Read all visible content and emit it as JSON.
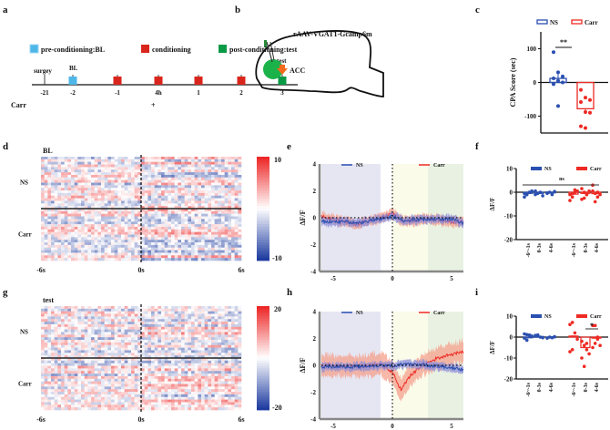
{
  "panel_labels": {
    "a": "a",
    "b": "b",
    "c": "c",
    "d": "d",
    "e": "e",
    "f": "f",
    "g": "g",
    "h": "h",
    "i": "i"
  },
  "timeline": {
    "legend": [
      {
        "label": "pre-conditioning:BL",
        "color": "#4fb6e8"
      },
      {
        "label": "conditioning",
        "color": "#d9261c"
      },
      {
        "label": "post-conditioning:test",
        "color": "#0a9a45"
      }
    ],
    "days": [
      {
        "label": "-21",
        "marker": "none"
      },
      {
        "label": "-2",
        "marker": "pre"
      },
      {
        "label": "-1",
        "marker": "cond"
      },
      {
        "label": "4h",
        "marker": "cond"
      },
      {
        "label": "1",
        "marker": "cond"
      },
      {
        "label": "2",
        "marker": "cond"
      },
      {
        "label": "3",
        "marker": "post"
      }
    ],
    "surgery_label": "surgey",
    "bl_label": "BL",
    "test_label": "test",
    "row_label": "Carr",
    "carr_mark": "+",
    "arrow_color": "#f26a1b"
  },
  "brain": {
    "virus_label": "rAAV-VGAT1-Gcamp6m",
    "region_label": "ACC",
    "region_color": "#1bb24a"
  },
  "colors": {
    "ns": "#2a4fb0",
    "carr": "#ee2a24",
    "ns_band": "#8c8cd8",
    "carr_band": "#f4a08c"
  },
  "chart_data": [
    {
      "id": "c",
      "type": "scatter-bar",
      "title": "",
      "xlabel": "",
      "ylabel": "CPA Score (sec)",
      "ylim": [
        -150,
        150
      ],
      "yticks": [
        100,
        0,
        -100
      ],
      "legend": [
        "NS",
        "Carr"
      ],
      "legend_placement": "top",
      "series": [
        {
          "name": "NS",
          "mean": 12,
          "sem": 20,
          "values": [
            90,
            30,
            18,
            12,
            5,
            0,
            -5,
            -70
          ]
        },
        {
          "name": "Carr",
          "mean": -78,
          "sem": 15,
          "values": [
            -22,
            -45,
            -52,
            -58,
            -88,
            -90,
            -130,
            -135
          ]
        }
      ],
      "significance": "**"
    },
    {
      "id": "d",
      "type": "heatmap",
      "title": "BL",
      "groups": [
        "NS",
        "Carr"
      ],
      "rows_per_group": [
        20,
        20
      ],
      "xlabels": [
        "-6s",
        "0s",
        "6s"
      ],
      "xlim": [
        -6,
        6
      ],
      "colorbar": {
        "max": 10,
        "min": -10,
        "max_label": "10",
        "min_label": "-10"
      }
    },
    {
      "id": "e",
      "type": "line",
      "ylabel": "ΔF/F",
      "xlim": [
        -6,
        6
      ],
      "ylim": [
        -4,
        4
      ],
      "yticks": [
        4,
        2,
        0,
        -2,
        -4
      ],
      "xticks": [
        -5,
        0,
        5
      ],
      "shaded": [
        {
          "from": -6,
          "to": -1,
          "color": "#e6e6f3"
        },
        {
          "from": 0,
          "to": 3,
          "color": "#fbfbea"
        },
        {
          "from": 3,
          "to": 6,
          "color": "#e9f2e2"
        }
      ],
      "legend": [
        "NS",
        "Carr"
      ],
      "series": [
        {
          "name": "NS",
          "points": [
            [
              -6,
              -0.3
            ],
            [
              -4,
              -0.3
            ],
            [
              -3,
              -0.4
            ],
            [
              -1,
              -0.1
            ],
            [
              0,
              0.1
            ],
            [
              1,
              -0.2
            ],
            [
              3,
              -0.1
            ],
            [
              5,
              -0.1
            ],
            [
              6,
              -0.4
            ]
          ],
          "sem": 0.3
        },
        {
          "name": "Carr",
          "points": [
            [
              -6,
              0.1
            ],
            [
              -4,
              -0.3
            ],
            [
              -3,
              -0.5
            ],
            [
              -1,
              0
            ],
            [
              0,
              0.3
            ],
            [
              1,
              -0.3
            ],
            [
              3,
              -0.1
            ],
            [
              5,
              -0.3
            ],
            [
              6,
              -0.3
            ]
          ],
          "sem": 0.35
        }
      ]
    },
    {
      "id": "f",
      "type": "dot-bar",
      "ylabel": "ΔF/F",
      "ylim": [
        -20,
        10
      ],
      "yticks": [
        10,
        0,
        -10,
        -20
      ],
      "categories": [
        "-6~-1s",
        "0-3s",
        "4-6s",
        "-6~-1s",
        "0-3s",
        "4-6s"
      ],
      "legend": [
        "NS",
        "Carr"
      ],
      "significance": "ns",
      "series": [
        {
          "name": "NS",
          "means": [
            -0.5,
            -0.5,
            -0.3
          ],
          "values": [
            [
              -2,
              -1,
              0,
              0.5,
              -0.5,
              -1
            ],
            [
              -1,
              -0.5,
              0,
              -1.5,
              0.5
            ],
            [
              -0.5,
              0,
              -1,
              0.3,
              -0.3
            ]
          ]
        },
        {
          "name": "Carr",
          "means": [
            -0.8,
            -0.5,
            -0.6
          ],
          "values": [
            [
              -3.5,
              -2,
              1,
              0.5,
              -1,
              -0.5,
              0
            ],
            [
              1.5,
              -2.5,
              -1,
              0.5,
              -3,
              0,
              -1
            ],
            [
              3,
              -4,
              -2,
              -1,
              0.5,
              -0.5,
              0
            ]
          ]
        }
      ]
    },
    {
      "id": "g",
      "type": "heatmap",
      "title": "test",
      "groups": [
        "NS",
        "Carr"
      ],
      "rows_per_group": [
        20,
        20
      ],
      "xlabels": [
        "-6s",
        "0s",
        "6s"
      ],
      "xlim": [
        -6,
        6
      ],
      "colorbar": {
        "max": 20,
        "min": -20,
        "max_label": "20",
        "min_label": "-20"
      }
    },
    {
      "id": "h",
      "type": "line",
      "ylabel": "ΔF/F",
      "xlim": [
        -6,
        6
      ],
      "ylim": [
        -4,
        4
      ],
      "yticks": [
        4,
        2,
        0,
        -2,
        -4
      ],
      "xticks": [
        -5,
        0,
        5
      ],
      "shaded": [
        {
          "from": -6,
          "to": -1,
          "color": "#e6e6f3"
        },
        {
          "from": 0,
          "to": 3,
          "color": "#fbfbea"
        },
        {
          "from": 3,
          "to": 6,
          "color": "#e9f2e2"
        }
      ],
      "legend": [
        "NS",
        "Carr"
      ],
      "series": [
        {
          "name": "NS",
          "points": [
            [
              -6,
              -0.1
            ],
            [
              -3,
              -0.1
            ],
            [
              -1,
              0
            ],
            [
              0,
              0
            ],
            [
              2,
              0.1
            ],
            [
              4,
              -0.1
            ],
            [
              6,
              -0.3
            ]
          ],
          "sem": 0.3
        },
        {
          "name": "Carr",
          "points": [
            [
              -6,
              0
            ],
            [
              -3,
              -0.1
            ],
            [
              -1,
              0.1
            ],
            [
              0,
              -0.5
            ],
            [
              0.7,
              -1.8
            ],
            [
              1.5,
              -0.8
            ],
            [
              2.5,
              0
            ],
            [
              4,
              0.6
            ],
            [
              5,
              0.8
            ],
            [
              6,
              1.0
            ]
          ],
          "sem": 0.8
        }
      ]
    },
    {
      "id": "i",
      "type": "dot-bar",
      "ylabel": "ΔF/F",
      "ylim": [
        -20,
        10
      ],
      "yticks": [
        10,
        0,
        -10,
        -20
      ],
      "categories": [
        "-6~-1s",
        "0-3s",
        "4-6s",
        "-6~-1s",
        "0-3s",
        "4-6s"
      ],
      "legend": [
        "NS",
        "Carr"
      ],
      "significance": "*",
      "series": [
        {
          "name": "NS",
          "means": [
            0,
            0.3,
            -0.2
          ],
          "values": [
            [
              1.5,
              -1.5,
              1,
              0.5,
              -0.5,
              1.2
            ],
            [
              0.5,
              1,
              0,
              -0.3,
              0.8
            ],
            [
              -0.5,
              0,
              -0.3,
              0.2
            ]
          ]
        },
        {
          "name": "Carr",
          "means": [
            0.5,
            -5,
            -0.5
          ],
          "values": [
            [
              6,
              7,
              2,
              -1,
              -7,
              -6
            ],
            [
              -2,
              -4,
              -6,
              -8,
              -10,
              -14,
              -3
            ],
            [
              5.5,
              5.5,
              -1,
              -4,
              -5,
              -3,
              0
            ]
          ]
        }
      ]
    }
  ]
}
